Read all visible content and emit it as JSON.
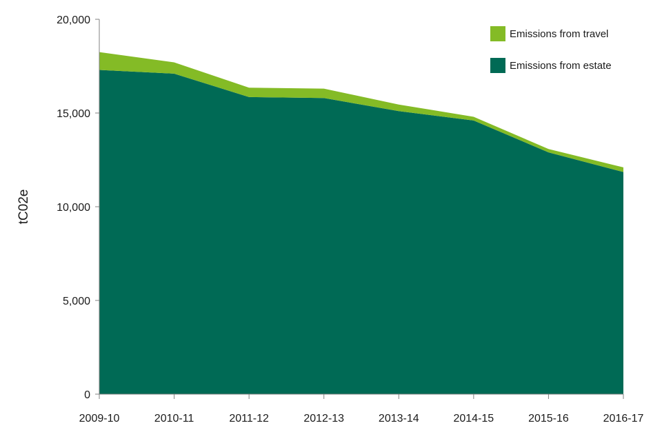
{
  "chart_data": {
    "type": "area",
    "stacked": true,
    "title": "",
    "xlabel": "",
    "ylabel": "tC02e",
    "ylim": [
      0,
      20000
    ],
    "yticks": [
      0,
      5000,
      10000,
      15000,
      20000
    ],
    "ytick_labels": [
      "0",
      "5,000",
      "10,000",
      "15,000",
      "20,000"
    ],
    "categories": [
      "2009-10",
      "2010-11",
      "2011-12",
      "2012-13",
      "2013-14",
      "2014-15",
      "2015-16",
      "2016-17"
    ],
    "series": [
      {
        "name": "Emissions from estate",
        "color": "#006a55",
        "values": [
          17300,
          17100,
          15850,
          15800,
          15100,
          14600,
          12900,
          11850
        ]
      },
      {
        "name": "Emissions from travel",
        "color": "#84bb26",
        "values": [
          950,
          600,
          500,
          500,
          350,
          200,
          180,
          250
        ]
      }
    ],
    "legend_order": [
      "Emissions from travel",
      "Emissions from estate"
    ],
    "legend_position": "top-right",
    "grid": false
  }
}
